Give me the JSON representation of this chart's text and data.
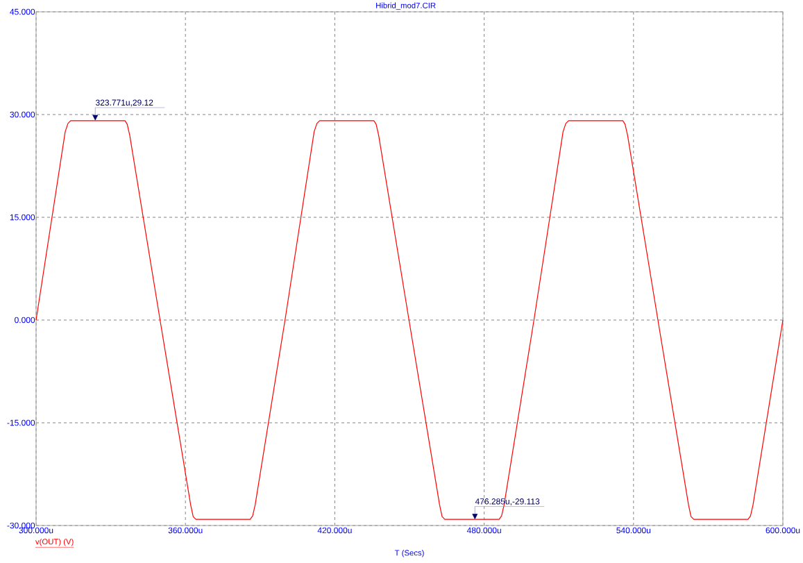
{
  "chart_data": {
    "type": "line",
    "title": "Hibrid_mod7.CIR",
    "xlabel": "T (Secs)",
    "xlim": [
      300,
      600
    ],
    "ylim": [
      -30,
      45
    ],
    "xticks": [
      {
        "value": 300,
        "label": "300.000u"
      },
      {
        "value": 360,
        "label": "360.000u"
      },
      {
        "value": 420,
        "label": "420.000u"
      },
      {
        "value": 480,
        "label": "480.000u"
      },
      {
        "value": 540,
        "label": "540.000u"
      },
      {
        "value": 600,
        "label": "600.000u"
      }
    ],
    "yticks": [
      {
        "value": -30,
        "label": "-30.000"
      },
      {
        "value": -15,
        "label": "-15.000"
      },
      {
        "value": 0,
        "label": "0.000"
      },
      {
        "value": 15,
        "label": "15.000"
      },
      {
        "value": 30,
        "label": "30.000"
      },
      {
        "value": 45,
        "label": "45.000"
      }
    ],
    "grid": true,
    "legend": "bottom left",
    "line_style": "solid",
    "series": [
      {
        "name": "v(OUT) (V)",
        "color": "#ff0000",
        "x": [
          300,
          311.7,
          312.8,
          313.9,
          335.7,
          336.6,
          337.6,
          349.8,
          362.1,
          363.1,
          364.2,
          386,
          387,
          388,
          400,
          411.7,
          412.8,
          413.9,
          435.7,
          436.6,
          437.6,
          449.8,
          462.1,
          463.1,
          464.2,
          486,
          487,
          488,
          500,
          511.7,
          512.8,
          513.9,
          535.7,
          536.6,
          537.6,
          549.8,
          562.1,
          563.1,
          564.2,
          586,
          587,
          588,
          600
        ],
        "values": [
          0,
          27.5,
          28.7,
          29.1,
          29.1,
          28.6,
          27,
          0,
          -27,
          -28.7,
          -29.1,
          -29.1,
          -28.6,
          -27,
          0,
          27.5,
          28.7,
          29.1,
          29.1,
          28.6,
          27,
          0,
          -27,
          -28.7,
          -29.1,
          -29.1,
          -28.6,
          -27,
          0,
          27.5,
          28.7,
          29.1,
          29.1,
          28.6,
          27,
          0,
          -27,
          -28.7,
          -29.1,
          -29.1,
          -28.6,
          -27,
          0
        ]
      }
    ],
    "annotations": [
      {
        "text": "323.771u,29.12",
        "x": 323.771,
        "y": 29.12
      },
      {
        "text": "476.285u,-29.113",
        "x": 476.285,
        "y": -29.113
      }
    ]
  }
}
